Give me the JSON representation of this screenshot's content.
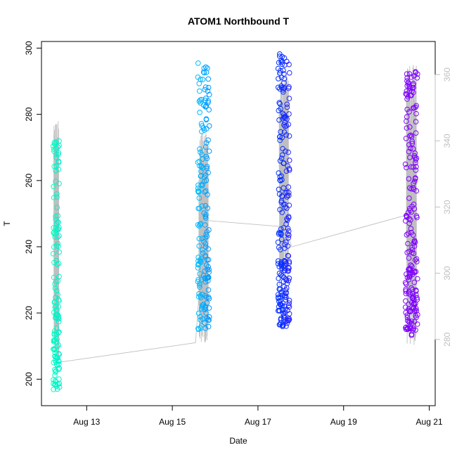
{
  "chart_data": {
    "type": "scatter",
    "title": "ATOM1 Northbound T",
    "xlabel": "Date",
    "ylabel": "T",
    "x_ticks": [
      "Aug 13",
      "Aug 15",
      "Aug 17",
      "Aug 19",
      "Aug 21"
    ],
    "y_ticks": [
      200,
      220,
      240,
      260,
      280,
      300
    ],
    "y_right_ticks": [
      280,
      300,
      320,
      340,
      360
    ],
    "xlim": [
      "2019-08-11 22:40",
      "2019-08-21 03:20"
    ],
    "ylim": [
      192,
      302
    ],
    "y_right_lim": [
      260,
      370
    ],
    "grid": false,
    "colors": {
      "palette_start": "#00ffbf",
      "palette_end": "#7f00ff",
      "secondary_line": "#bfbfbf",
      "axis": "#000000"
    },
    "clusters": [
      {
        "center": "2019-08-12 07:00",
        "width_hours": 3.5,
        "y_min": 196.5,
        "y_max": 272.5,
        "n": 140,
        "color": "#00ffbf"
      },
      {
        "center": "2019-08-15 17:30",
        "width_hours": 6.5,
        "y_min": 215,
        "y_max": 295.5,
        "n": 180,
        "color": "#00bfff"
      },
      {
        "center": "2019-08-17 14:30",
        "width_hours": 6.5,
        "y_min": 215.5,
        "y_max": 299,
        "n": 230,
        "color": "#0033ff"
      },
      {
        "center": "2019-08-20 14:00",
        "width_hours": 7,
        "y_min": 213,
        "y_max": 293.5,
        "n": 200,
        "color": "#7f00ff"
      }
    ],
    "secondary_series": {
      "axis": "right",
      "trend_x": [
        "2019-08-12 07:00",
        "2019-08-15 13:00",
        "2019-08-15 18:00",
        "2019-08-17 15:00",
        "2019-08-17 19:00",
        "2019-08-20 14:00"
      ],
      "trend_y": [
        273,
        279,
        316,
        314,
        308,
        318
      ],
      "clusters": [
        {
          "center": "2019-08-12 07:00",
          "y_min": 273,
          "y_max": 346
        },
        {
          "center": "2019-08-15 17:30",
          "y_min": 279,
          "y_max": 343
        },
        {
          "center": "2019-08-17 14:30",
          "y_min": 296,
          "y_max": 360
        },
        {
          "center": "2019-08-20 14:00",
          "y_min": 278,
          "y_max": 363
        }
      ]
    }
  }
}
